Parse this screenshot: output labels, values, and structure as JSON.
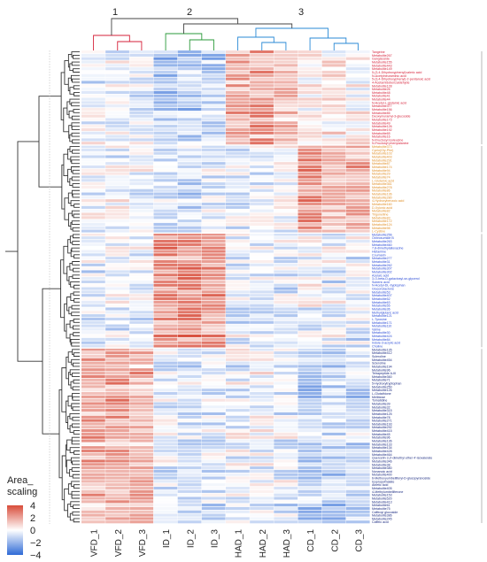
{
  "chart_data": {
    "type": "heatmap",
    "title": "",
    "xlabel": "",
    "ylabel": "",
    "legend": {
      "title": "Area_\nscaling",
      "ticks": [
        4,
        2,
        0,
        -2,
        -4
      ],
      "tick_labels": [
        "4",
        "2",
        "0",
        "−2",
        "−4"
      ],
      "range": [
        -4,
        4
      ],
      "colors": {
        "low": "#2f6bd6",
        "mid": "#ffffff",
        "high": "#d84c3a"
      }
    },
    "column_cluster_labels": [
      "1",
      "2",
      "3"
    ],
    "columns": [
      "VFD_1",
      "VFD_2",
      "VFD_3",
      "ID_1",
      "ID_2",
      "ID_3",
      "HAD_1",
      "HAD_2",
      "HAD_3",
      "CD_1",
      "CD_2",
      "CD_3"
    ],
    "row_groups": [
      {
        "color": "#d6223a",
        "profile": [
          -0.4,
          -0.5,
          -0.4,
          -1.5,
          -1.4,
          -1.3,
          1.6,
          1.9,
          1.4,
          0.2,
          0.3,
          0.2
        ],
        "rows": [
          "Tangeine",
          "Metabolite267",
          "Gangisoside",
          "Metabolite155",
          "Metabolite443",
          "Metabolite149",
          "5-(3,4-Dihydroxyphenyl)valeric acid",
          "N-Acetylneuraminic acid",
          "5-(3,4-Dihydroxyphenyl)-2-pentanoic acid",
          "4-Acetamidobenzaldehyde",
          "Metabolite128",
          "Metabolite26",
          "Metabolite48",
          "Metabolite41",
          "Metabolite44",
          "N-Acetyl-L-glutamic acid",
          "Metabolite377",
          "Metabolite156",
          "Metabolite85",
          "Deoxymuramyl-3-glucoside",
          "Metabolite173",
          "Metabolite49",
          "Metabolite126",
          "Metabolite192",
          "Metabolite65",
          "Metabolite16",
          "N-Fructosyl isoleucine",
          "N-Fructosyl phenylalanine"
        ]
      },
      {
        "color": "#e0902a",
        "profile": [
          -0.3,
          -0.1,
          -0.3,
          -0.8,
          -1.1,
          -0.7,
          -0.4,
          -0.5,
          -0.3,
          2.2,
          1.2,
          1.6
        ],
        "rows": [
          "Metabolite373",
          "Cyclo(Gly-Phe)",
          "Metabolite103",
          "Metabolite403",
          "Metabolite291",
          "Metabolite87",
          "Metabolite174",
          "Metabolite94",
          "Metabolite29",
          "Metabolite74",
          "L-Glutamic acid",
          "Metabolite361",
          "Metabolite278",
          "Metabolite86",
          "Metabolite136",
          "Metabolite280",
          "4-Hydroxybenzoic acid",
          "Metabolite160",
          "D-Xylonic acid",
          "Metabolite82",
          "Trigonelline",
          "Metabolite83",
          "Metabolite172",
          "Metabolite124",
          "Metabolite98",
          "L-Cystine"
        ]
      },
      {
        "color": "#2a4ad6",
        "profile": [
          -0.6,
          -0.5,
          -0.6,
          2.3,
          2.5,
          2.2,
          -0.5,
          -0.4,
          -0.6,
          -0.3,
          -0.5,
          -0.4
        ],
        "rows": [
          "Metabolite256",
          "Oxbrosumide B",
          "Metabolite263",
          "Metabolite460",
          "7,8-dimethylalloxazine",
          "Histamine",
          "Coumarin",
          "Metabolite277",
          "Metabolite31",
          "Metabolite262",
          "Metabolite307",
          "Metabolite302",
          "Azelaic acid",
          "3-O-beta-D-galactosyl-sn-glycerol",
          "Suberic acid",
          "N-Acetyl-DL-tryptophan",
          "Gluconolactone",
          "Metabolite53",
          "Metabolite407",
          "Metabolite52",
          "Metabolite63",
          "Metabolite55",
          "Metabolite36",
          "Methylglutaric acid",
          "Metabolite121",
          "L-Tyrosine",
          "Metabolite171",
          "Metabolite110",
          "Valine",
          "Metabolite30",
          "Metabolite424",
          "Metabolite84",
          "Indole-3-acrylic acid",
          "Choline"
        ]
      },
      {
        "color": "#1a2a80",
        "profile": [
          1.7,
          1.9,
          1.5,
          -0.5,
          -0.7,
          -0.6,
          -0.4,
          -0.3,
          -0.5,
          -1.3,
          -1.1,
          -1.0
        ],
        "rows": [
          "Metabolite135",
          "Metabolite412",
          "Scleroline",
          "Metabolite454",
          "Scleroline",
          "Metabolite194",
          "Metabolite96",
          "Tetrapeptide A-III",
          "Metabolite360",
          "Metabolite71",
          "5-Hydroxytryptophan",
          "Metabolite250",
          "Metabolite126",
          "L-Glutathione",
          "Melibiose",
          "Tomatidine",
          "Metabolite39",
          "Metabolite32",
          "Metabolite315",
          "Metabolite125",
          "Metabolite78",
          "Metabolite271",
          "Metabolite193",
          "Metabolite292",
          "Metabolite415",
          "Metabolite45",
          "Metabolite96",
          "Metabolite136",
          "Metabolite133",
          "Metabolite134",
          "Metabolite428",
          "Metabolite464",
          "Quercetin 3,3'-dimethyl ether 4'-isovalerate",
          "Metabolite346",
          "Metabolite38",
          "Metabolite380",
          "Nonanoic acid",
          "Metabolite400",
          "6-Methoxyumbelliferyl-D-glucopyranoside",
          "Isopropylmalate",
          "Abietic acid",
          "Metabolite405",
          "4-Methylumbelliferone",
          "Metabolite153",
          "Metabolite520",
          "Metabolite413",
          "Metabolite61",
          "Metabolite75",
          "Caffeoyl glucoside",
          "Metabolite386",
          "Metabolite245",
          "Caffeic acid"
        ]
      }
    ]
  }
}
